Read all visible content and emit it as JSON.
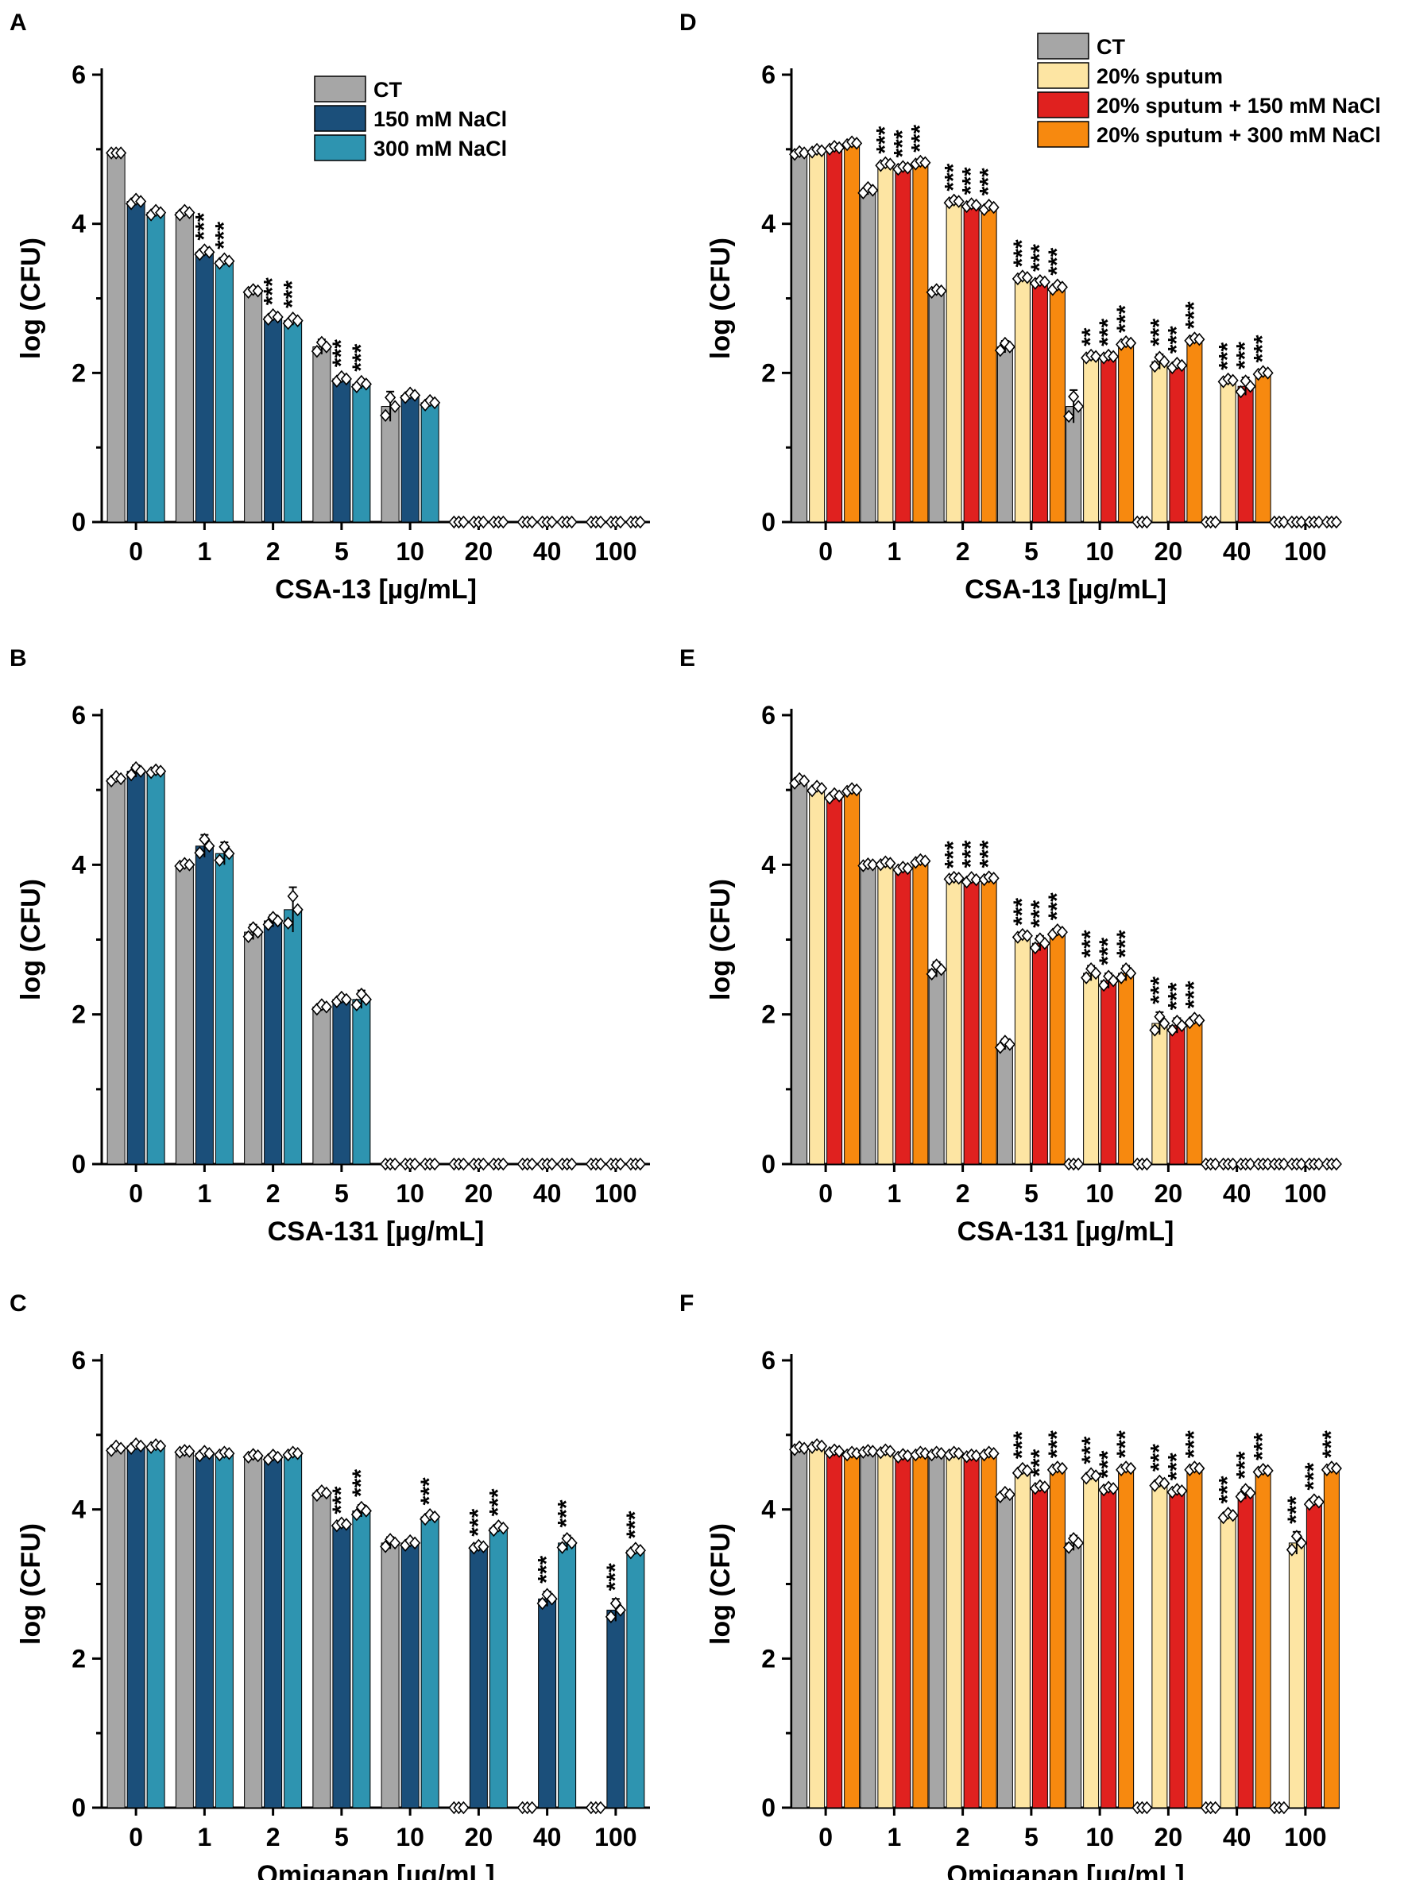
{
  "figure": {
    "series_colors": {
      "CT": "#a6a6a6",
      "150 mM NaCl": "#1b4f7a",
      "300 mM NaCl": "#2e94b0",
      "20% sputum": "#fde5a3",
      "20% sputum + 150 mM NaCl": "#e0211f",
      "20% sputum + 300 mM NaCl": "#f7890f"
    },
    "marker_icon": "diamond-marker-icon"
  },
  "chart_data": [
    {
      "panel": "A",
      "type": "bar",
      "title": "",
      "xlabel": "CSA-13 [µg/mL]",
      "ylabel": "log (CFU)",
      "ylim": [
        0,
        6
      ],
      "yticks": [
        0,
        2,
        4,
        6
      ],
      "categories": [
        "0",
        "1",
        "2",
        "5",
        "10",
        "20",
        "40",
        "100"
      ],
      "legend": {
        "placement": "top-right",
        "entries": [
          "CT",
          "150 mM NaCl",
          "300 mM NaCl"
        ]
      },
      "series": [
        {
          "name": "CT",
          "values": [
            4.95,
            4.15,
            3.1,
            2.35,
            1.55,
            0,
            0,
            0
          ],
          "errors": [
            0,
            0.05,
            0.03,
            0.1,
            0.2,
            0,
            0,
            0
          ],
          "sig": [
            "",
            "",
            "",
            "",
            "",
            "",
            "",
            ""
          ]
        },
        {
          "name": "150 mM NaCl",
          "values": [
            4.3,
            3.62,
            2.75,
            1.92,
            1.7,
            0,
            0,
            0
          ],
          "errors": [
            0.05,
            0.05,
            0.05,
            0.05,
            0.05,
            0,
            0,
            0
          ],
          "sig": [
            "",
            "***",
            "***",
            "***",
            "",
            "",
            "",
            ""
          ]
        },
        {
          "name": "300 mM NaCl",
          "values": [
            4.15,
            3.5,
            2.7,
            1.85,
            1.6,
            0,
            0,
            0
          ],
          "errors": [
            0.05,
            0.05,
            0.06,
            0.06,
            0.05,
            0,
            0,
            0
          ],
          "sig": [
            "",
            "***",
            "***",
            "***",
            "",
            "",
            "",
            ""
          ]
        }
      ]
    },
    {
      "panel": "B",
      "type": "bar",
      "title": "",
      "xlabel": "CSA-131 [µg/mL]",
      "ylabel": "log (CFU)",
      "ylim": [
        0,
        6
      ],
      "yticks": [
        0,
        2,
        4,
        6
      ],
      "categories": [
        "0",
        "1",
        "2",
        "5",
        "10",
        "20",
        "40",
        "100"
      ],
      "legend": null,
      "series": [
        {
          "name": "CT",
          "values": [
            5.15,
            4.0,
            3.1,
            2.1,
            0,
            0,
            0,
            0
          ],
          "errors": [
            0.05,
            0.03,
            0.1,
            0.05,
            0,
            0,
            0,
            0
          ],
          "sig": [
            "",
            "",
            "",
            "",
            "",
            "",
            "",
            ""
          ]
        },
        {
          "name": "150 mM NaCl",
          "values": [
            5.25,
            4.25,
            3.25,
            2.2,
            0,
            0,
            0,
            0
          ],
          "errors": [
            0.08,
            0.15,
            0.08,
            0.05,
            0,
            0,
            0,
            0
          ],
          "sig": [
            "",
            "",
            "",
            "",
            "",
            "",
            "",
            ""
          ]
        },
        {
          "name": "300 mM NaCl",
          "values": [
            5.25,
            4.15,
            3.4,
            2.2,
            0,
            0,
            0,
            0
          ],
          "errors": [
            0.03,
            0.15,
            0.3,
            0.12,
            0,
            0,
            0,
            0
          ],
          "sig": [
            "",
            "",
            "",
            "",
            "",
            "",
            "",
            ""
          ]
        }
      ]
    },
    {
      "panel": "C",
      "type": "bar",
      "title": "",
      "xlabel": "Omiganan [µg/mL]",
      "ylabel": "log (CFU)",
      "ylim": [
        0,
        6
      ],
      "yticks": [
        0,
        2,
        4,
        6
      ],
      "categories": [
        "0",
        "1",
        "2",
        "5",
        "10",
        "20",
        "40",
        "100"
      ],
      "legend": null,
      "series": [
        {
          "name": "CT",
          "values": [
            4.82,
            4.78,
            4.72,
            4.22,
            3.55,
            0,
            0,
            0
          ],
          "errors": [
            0.05,
            0.02,
            0.03,
            0.05,
            0.08,
            0,
            0,
            0
          ],
          "sig": [
            "",
            "",
            "",
            "",
            "",
            "",
            "",
            ""
          ]
        },
        {
          "name": "150 mM NaCl",
          "values": [
            4.85,
            4.75,
            4.7,
            3.8,
            3.55,
            3.5,
            2.8,
            2.65
          ],
          "errors": [
            0.05,
            0.05,
            0.05,
            0.03,
            0.05,
            0.03,
            0.1,
            0.15
          ],
          "sig": [
            "",
            "",
            "",
            "***",
            "",
            "***",
            "***",
            "***"
          ]
        },
        {
          "name": "300 mM NaCl",
          "values": [
            4.85,
            4.75,
            4.75,
            3.98,
            3.9,
            3.75,
            3.55,
            3.45
          ],
          "errors": [
            0.03,
            0.03,
            0.03,
            0.08,
            0.05,
            0.05,
            0.1,
            0.05
          ],
          "sig": [
            "",
            "",
            "",
            "***",
            "***",
            "***",
            "***",
            "***"
          ]
        }
      ]
    },
    {
      "panel": "D",
      "type": "bar",
      "title": "",
      "xlabel": "CSA-13 [µg/mL]",
      "ylabel": "log (CFU)",
      "ylim": [
        0,
        6
      ],
      "yticks": [
        0,
        2,
        4,
        6
      ],
      "categories": [
        "0",
        "1",
        "2",
        "5",
        "10",
        "20",
        "40",
        "100"
      ],
      "legend": {
        "placement": "top-right",
        "entries": [
          "CT",
          "20% sputum",
          "20% sputum + 150 mM NaCl",
          "20% sputum + 300 mM NaCl"
        ]
      },
      "series": [
        {
          "name": "CT",
          "values": [
            4.95,
            4.45,
            3.1,
            2.35,
            1.55,
            0,
            0,
            0
          ],
          "errors": [
            0.03,
            0.06,
            0.03,
            0.08,
            0.22,
            0,
            0,
            0
          ],
          "sig": [
            "",
            "",
            "",
            "",
            "",
            "",
            "",
            ""
          ]
        },
        {
          "name": "20% sputum",
          "values": [
            4.98,
            4.8,
            4.3,
            3.28,
            2.22,
            2.15,
            1.9,
            0
          ],
          "errors": [
            0.03,
            0.03,
            0.03,
            0.03,
            0.03,
            0.1,
            0.03,
            0
          ],
          "sig": [
            "",
            "***",
            "***",
            "***",
            "**",
            "***",
            "***",
            ""
          ]
        },
        {
          "name": "20% sputum + 150 mM NaCl",
          "values": [
            5.02,
            4.75,
            4.25,
            3.22,
            2.22,
            2.1,
            1.82,
            0
          ],
          "errors": [
            0.03,
            0.03,
            0.03,
            0.03,
            0.03,
            0.05,
            0.12,
            0
          ],
          "sig": [
            "",
            "***",
            "***",
            "***",
            "***",
            "***",
            "***",
            ""
          ]
        },
        {
          "name": "20% sputum + 300 mM NaCl",
          "values": [
            5.08,
            4.82,
            4.22,
            3.15,
            2.4,
            2.45,
            2.0,
            0
          ],
          "errors": [
            0.03,
            0.03,
            0.05,
            0.05,
            0.03,
            0.03,
            0.03,
            0
          ],
          "sig": [
            "",
            "***",
            "***",
            "***",
            "***",
            "***",
            "***",
            ""
          ]
        }
      ]
    },
    {
      "panel": "E",
      "type": "bar",
      "title": "",
      "xlabel": "CSA-131 [µg/mL]",
      "ylabel": "log (CFU)",
      "ylim": [
        0,
        6
      ],
      "yticks": [
        0,
        2,
        4,
        6
      ],
      "categories": [
        "0",
        "1",
        "2",
        "5",
        "10",
        "20",
        "40",
        "100"
      ],
      "legend": null,
      "series": [
        {
          "name": "CT",
          "values": [
            5.12,
            4.0,
            2.6,
            1.6,
            0,
            0,
            0,
            0
          ],
          "errors": [
            0.05,
            0.02,
            0.1,
            0.07,
            0,
            0,
            0,
            0
          ],
          "sig": [
            "",
            "",
            "",
            "",
            "",
            "",
            "",
            ""
          ]
        },
        {
          "name": "20% sputum",
          "values": [
            5.02,
            4.02,
            3.82,
            3.05,
            2.55,
            1.88,
            0,
            0
          ],
          "errors": [
            0.05,
            0.03,
            0.02,
            0.03,
            0.1,
            0.15,
            0,
            0
          ],
          "sig": [
            "",
            "",
            "***",
            "***",
            "***",
            "***",
            "",
            ""
          ]
        },
        {
          "name": "20% sputum + 150 mM NaCl",
          "values": [
            4.92,
            3.95,
            3.8,
            2.95,
            2.45,
            1.85,
            0,
            0
          ],
          "errors": [
            0.05,
            0.03,
            0.05,
            0.1,
            0.1,
            0.1,
            0,
            0
          ],
          "sig": [
            "",
            "",
            "***",
            "***",
            "***",
            "***",
            "",
            ""
          ]
        },
        {
          "name": "20% sputum + 300 mM NaCl",
          "values": [
            5.0,
            4.05,
            3.82,
            3.1,
            2.55,
            1.92,
            0,
            0
          ],
          "errors": [
            0.03,
            0.03,
            0.03,
            0.05,
            0.1,
            0.05,
            0,
            0
          ],
          "sig": [
            "",
            "",
            "***",
            "***",
            "***",
            "***",
            "",
            ""
          ]
        }
      ]
    },
    {
      "panel": "F",
      "type": "bar",
      "title": "",
      "xlabel": "Omiganan [µg/mL]",
      "ylabel": "log (CFU)",
      "ylim": [
        0,
        6
      ],
      "yticks": [
        0,
        2,
        4,
        6
      ],
      "categories": [
        "0",
        "1",
        "2",
        "5",
        "10",
        "20",
        "40",
        "100"
      ],
      "legend": null,
      "series": [
        {
          "name": "CT",
          "values": [
            4.82,
            4.78,
            4.75,
            4.2,
            3.55,
            0,
            0,
            0
          ],
          "errors": [
            0.03,
            0.02,
            0.03,
            0.05,
            0.1,
            0,
            0,
            0
          ],
          "sig": [
            "",
            "",
            "",
            "",
            "",
            "",
            "",
            ""
          ]
        },
        {
          "name": "20% sputum",
          "values": [
            4.85,
            4.78,
            4.75,
            4.52,
            4.45,
            4.35,
            3.92,
            3.55
          ],
          "errors": [
            0.03,
            0.03,
            0.03,
            0.05,
            0.05,
            0.05,
            0.05,
            0.15
          ],
          "sig": [
            "",
            "",
            "",
            "***",
            "***",
            "***",
            "***",
            "***"
          ]
        },
        {
          "name": "20% sputum + 150 mM NaCl",
          "values": [
            4.78,
            4.72,
            4.72,
            4.3,
            4.28,
            4.25,
            4.22,
            4.1
          ],
          "errors": [
            0.03,
            0.03,
            0.02,
            0.03,
            0.03,
            0.03,
            0.08,
            0.05
          ],
          "sig": [
            "",
            "",
            "",
            "***",
            "***",
            "***",
            "***",
            "***"
          ]
        },
        {
          "name": "20% sputum + 300 mM NaCl",
          "values": [
            4.75,
            4.75,
            4.75,
            4.55,
            4.55,
            4.55,
            4.52,
            4.55
          ],
          "errors": [
            0.03,
            0.03,
            0.03,
            0.03,
            0.03,
            0.03,
            0.03,
            0.03
          ],
          "sig": [
            "",
            "",
            "",
            "***",
            "***",
            "***",
            "***",
            "***"
          ]
        }
      ]
    }
  ]
}
